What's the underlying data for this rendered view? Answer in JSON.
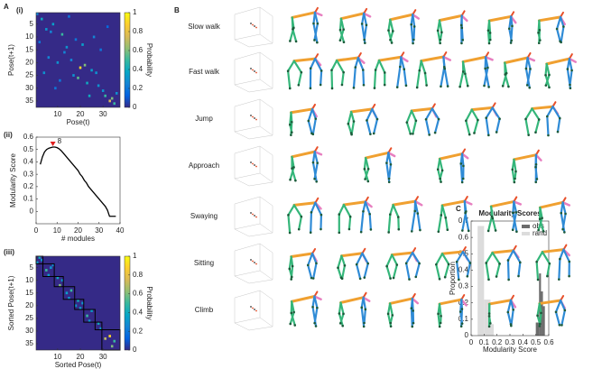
{
  "panel_letters": [
    "A",
    "B",
    "C"
  ],
  "behaviors": [
    {
      "label": "Slow walk",
      "color": "#3b55a8"
    },
    {
      "label": "Fast walk",
      "color": "#e5262b"
    },
    {
      "label": "Jump",
      "color": "#e3d92a"
    },
    {
      "label": "Approach",
      "color": "#e0282a"
    },
    {
      "label": "Swaying",
      "color": "#52c0e6"
    },
    {
      "label": "Sitting",
      "color": "#c65cbd"
    },
    {
      "label": "Climb",
      "color": "#5cb846"
    }
  ],
  "chart_data": [
    {
      "type": "heatmap",
      "panel": "(i)",
      "xlabel": "Pose(t)",
      "ylabel": "Pose(t+1)",
      "xlim": [
        0.5,
        37.5
      ],
      "ylim": [
        0.5,
        37.5
      ],
      "xticks": [
        10,
        20,
        30
      ],
      "yticks": [
        5,
        10,
        15,
        20,
        25,
        30,
        35
      ],
      "clim": [
        0,
        1
      ],
      "cticks": [
        0,
        0.2,
        0.4,
        0.6,
        0.8,
        1
      ],
      "colorbar_label": "Probability",
      "cells": {
        "x": [
          3,
          5,
          8,
          12,
          2,
          14,
          6,
          10,
          20,
          22,
          17,
          25,
          19,
          23,
          27,
          13,
          9,
          30,
          31,
          33,
          34,
          28,
          24,
          16,
          35,
          11,
          4,
          21,
          26,
          29,
          36,
          7,
          18,
          32,
          15,
          1
        ],
        "y": [
          3,
          7,
          5,
          9,
          12,
          14,
          18,
          20,
          22,
          21,
          25,
          23,
          26,
          28,
          24,
          16,
          30,
          31,
          33,
          35,
          34,
          29,
          33,
          19,
          36,
          27,
          24,
          13,
          10,
          15,
          32,
          8,
          11,
          6,
          2,
          1
        ],
        "values": [
          0.4,
          0.3,
          0.35,
          0.5,
          0.2,
          0.3,
          0.25,
          0.3,
          0.9,
          0.6,
          0.3,
          0.35,
          0.55,
          0.4,
          0.3,
          0.25,
          0.2,
          0.3,
          0.5,
          0.75,
          0.6,
          0.3,
          0.4,
          0.25,
          0.5,
          0.2,
          0.3,
          0.35,
          0.25,
          0.2,
          0.3,
          0.25,
          0.2,
          0.15,
          0.2,
          0.25
        ]
      }
    },
    {
      "type": "line",
      "panel": "(ii)",
      "xlabel": "# modules",
      "ylabel": "Modularity Score",
      "xlim": [
        0,
        40
      ],
      "ylim": [
        -0.1,
        0.6
      ],
      "xticks": [
        0,
        10,
        20,
        30,
        40
      ],
      "yticks": [
        0,
        0.1,
        0.2,
        0.3,
        0.4,
        0.5,
        0.6
      ],
      "color": "#000000",
      "x": [
        2,
        3,
        4,
        5,
        6,
        7,
        8,
        9,
        10,
        11,
        12,
        13,
        14,
        15,
        16,
        17,
        18,
        19,
        20,
        21,
        22,
        23,
        24,
        25,
        26,
        27,
        28,
        29,
        30,
        31,
        32,
        33,
        34,
        35,
        36,
        37,
        38
      ],
      "values": [
        0.38,
        0.44,
        0.48,
        0.5,
        0.51,
        0.515,
        0.52,
        0.52,
        0.515,
        0.505,
        0.49,
        0.47,
        0.45,
        0.43,
        0.41,
        0.39,
        0.37,
        0.35,
        0.33,
        0.3,
        0.28,
        0.25,
        0.23,
        0.2,
        0.18,
        0.16,
        0.14,
        0.12,
        0.1,
        0.08,
        0.06,
        0.04,
        0.01,
        -0.04,
        -0.04,
        -0.04,
        -0.04
      ],
      "peak": {
        "x": 8,
        "y": 0.52,
        "color": "#e02020"
      }
    },
    {
      "type": "heatmap",
      "panel": "(iii)",
      "xlabel": "Sorted Pose(t)",
      "ylabel": "Sorted Pose(t+1)",
      "xlim": [
        0.5,
        37.5
      ],
      "ylim": [
        0.5,
        37.5
      ],
      "xticks": [
        10,
        20,
        30
      ],
      "yticks": [
        5,
        10,
        15,
        20,
        25,
        30,
        35
      ],
      "clim": [
        0,
        1
      ],
      "cticks": [
        0,
        0.2,
        0.4,
        0.6,
        0.8,
        1
      ],
      "colorbar_label": "Probability",
      "cells": {
        "x": [
          2,
          3,
          1,
          5,
          7,
          6,
          10,
          11,
          12,
          14,
          16,
          15,
          19,
          20,
          21,
          23,
          25,
          24,
          28,
          29,
          31,
          33,
          35,
          34,
          8,
          18
        ],
        "y": [
          1,
          2,
          3,
          6,
          5,
          8,
          9,
          12,
          10,
          15,
          14,
          17,
          18,
          21,
          19,
          24,
          22,
          26,
          27,
          29,
          33,
          32,
          34,
          36,
          4,
          20
        ],
        "values": [
          0.4,
          0.3,
          0.35,
          0.5,
          0.3,
          0.35,
          0.4,
          0.6,
          0.3,
          0.35,
          0.5,
          0.3,
          0.4,
          0.35,
          0.3,
          0.5,
          0.35,
          0.3,
          0.4,
          0.3,
          0.7,
          0.9,
          0.5,
          0.6,
          0.25,
          0.3
        ]
      },
      "modules": {
        "start": [
          1,
          4,
          9,
          13,
          18,
          22,
          27,
          30
        ],
        "end": [
          3,
          8,
          12,
          17,
          21,
          26,
          29,
          37
        ]
      }
    },
    {
      "type": "histogram",
      "title": "Modularity Scores",
      "xlabel": "Modularity Score",
      "ylabel": "Proportion",
      "xlim": [
        0,
        0.6
      ],
      "ylim": [
        0,
        0.7
      ],
      "xticks": [
        0,
        0.1,
        0.2,
        0.3,
        0.4,
        0.5,
        0.6
      ],
      "yticks": [
        0,
        0.1,
        0.2,
        0.3,
        0.4,
        0.5,
        0.6,
        0.7
      ],
      "legend": "upper right",
      "series": [
        {
          "name": "obs",
          "color": "#6b6b6b",
          "bins": [
            0.5,
            0.525,
            0.54,
            0.555,
            0.57
          ],
          "values": [
            0.08,
            0.38,
            0.27,
            0.18
          ]
        },
        {
          "name": "rand",
          "color": "#dcdcdc",
          "bins": [
            0.05,
            0.1,
            0.15,
            0.175
          ],
          "values": [
            0.67,
            0.22,
            0.07
          ]
        }
      ]
    }
  ]
}
